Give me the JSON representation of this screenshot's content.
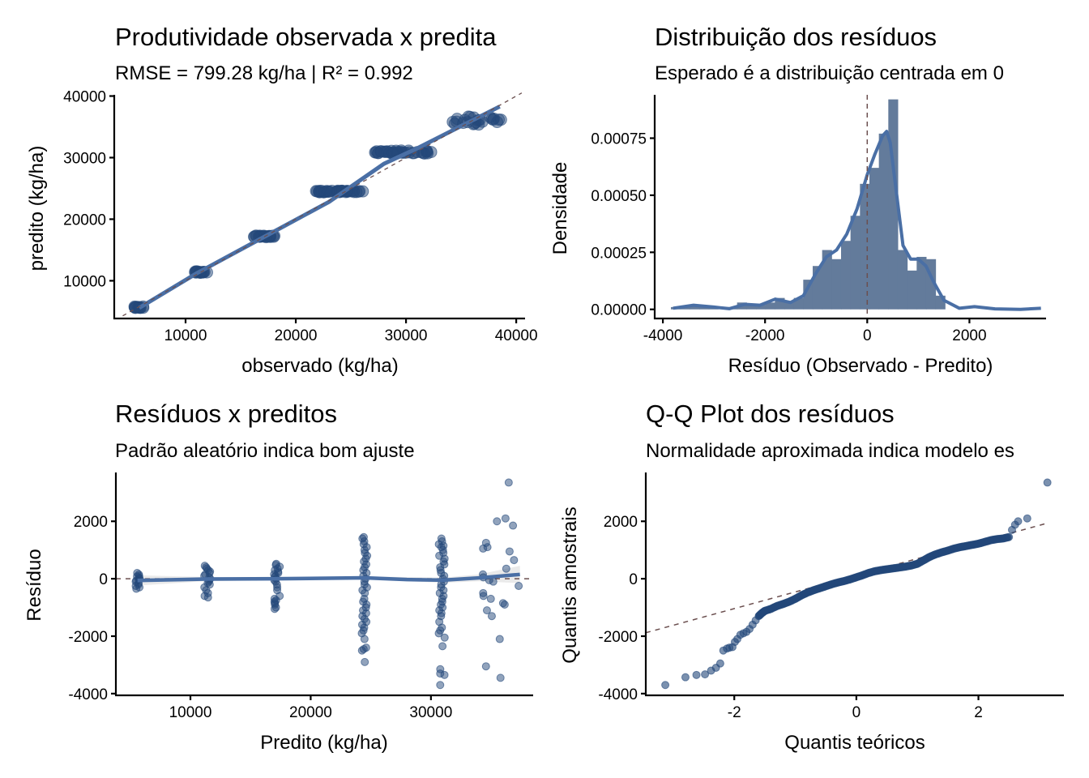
{
  "colors": {
    "point": "#23487a",
    "line": "#4a6fa5",
    "bar": "#637b9b",
    "ref": "#6b4f4f",
    "band": "#d9d9d9"
  },
  "chart_data": [
    {
      "type": "scatter",
      "title": "Produtividade observada x predita",
      "subtitle": "RMSE = 799.28 kg/ha | R² = 0.992",
      "xlabel": "observado (kg/ha)",
      "ylabel": "predito (kg/ha)",
      "xlim": [
        3530,
        40800
      ],
      "ylim": [
        3870,
        40200
      ],
      "xticks": [
        10000,
        20000,
        30000,
        40000
      ],
      "xtick_labels": [
        "10000",
        "20000",
        "30000",
        "40000"
      ],
      "yticks": [
        10000,
        20000,
        30000,
        40000
      ],
      "ytick_labels": [
        "10000",
        "20000",
        "30000",
        "40000"
      ],
      "reference_line": "y = x (dashed)",
      "fit_line": [
        [
          5800,
          5600
        ],
        [
          11000,
          11200
        ],
        [
          17000,
          17000
        ],
        [
          23000,
          22800
        ],
        [
          28000,
          29000
        ],
        [
          31000,
          31500
        ],
        [
          38500,
          38300
        ]
      ],
      "clusters": [
        {
          "x_range": [
            5300,
            6200
          ],
          "y": 5700,
          "n": 14
        },
        {
          "x_range": [
            10800,
            12000
          ],
          "y": 11400,
          "n": 18
        },
        {
          "x_range": [
            16200,
            18200
          ],
          "y": 17200,
          "n": 22
        },
        {
          "x_range": [
            21800,
            26200
          ],
          "y": 24500,
          "n": 40
        },
        {
          "x_range": [
            27000,
            32500
          ],
          "y": 30900,
          "n": 40
        },
        {
          "x_range": [
            34000,
            38800
          ],
          "y": 36000,
          "n": 24
        }
      ]
    },
    {
      "type": "bar",
      "title": "Distribuição dos resíduos",
      "subtitle": "Esperado é a distribuição centrada em 0",
      "xlabel": "Resíduo (Observado - Predito)",
      "ylabel": "Densidade",
      "xlim": [
        -4160,
        3500
      ],
      "ylim": [
        -4e-05,
        0.00094
      ],
      "xticks": [
        -4000,
        -2000,
        0,
        2000
      ],
      "xtick_labels": [
        "-4000",
        "-2000",
        "0",
        "2000"
      ],
      "yticks": [
        0,
        0.00025,
        0.0005,
        0.00075
      ],
      "ytick_labels": [
        "0.00000",
        "0.00025",
        "0.00050",
        "0.00075"
      ],
      "bin_width": 185,
      "bins": [
        {
          "x": -3750,
          "density": 1e-05
        },
        {
          "x": -3565,
          "density": 1e-05
        },
        {
          "x": -3380,
          "density": 2e-05
        },
        {
          "x": -3195,
          "density": 1e-05
        },
        {
          "x": -3010,
          "density": 1e-05
        },
        {
          "x": -2825,
          "density": 0.0
        },
        {
          "x": -2640,
          "density": 1e-05
        },
        {
          "x": -2455,
          "density": 3e-05
        },
        {
          "x": -2270,
          "density": 2e-05
        },
        {
          "x": -2085,
          "density": 2e-05
        },
        {
          "x": -1900,
          "density": 3e-05
        },
        {
          "x": -1715,
          "density": 5e-05
        },
        {
          "x": -1530,
          "density": 3e-05
        },
        {
          "x": -1345,
          "density": 5e-05
        },
        {
          "x": -1160,
          "density": 0.00013
        },
        {
          "x": -975,
          "density": 0.00019
        },
        {
          "x": -790,
          "density": 0.00026
        },
        {
          "x": -605,
          "density": 0.00022
        },
        {
          "x": -420,
          "density": 0.0003
        },
        {
          "x": -235,
          "density": 0.00041
        },
        {
          "x": -50,
          "density": 0.00055
        },
        {
          "x": 135,
          "density": 0.00062
        },
        {
          "x": 320,
          "density": 0.00077
        },
        {
          "x": 505,
          "density": 0.00092
        },
        {
          "x": 690,
          "density": 0.00026
        },
        {
          "x": 875,
          "density": 0.00017
        },
        {
          "x": 1060,
          "density": 0.00023
        },
        {
          "x": 1245,
          "density": 0.00022
        },
        {
          "x": 1430,
          "density": 6e-05
        }
      ],
      "density_curve": [
        [
          -3800,
          5e-06
        ],
        [
          -3400,
          1.8e-05
        ],
        [
          -3000,
          1e-05
        ],
        [
          -2700,
          3e-06
        ],
        [
          -2400,
          2.2e-05
        ],
        [
          -2100,
          1.8e-05
        ],
        [
          -1800,
          4.5e-05
        ],
        [
          -1500,
          3e-05
        ],
        [
          -1250,
          6e-05
        ],
        [
          -1000,
          0.00016
        ],
        [
          -800,
          0.00023
        ],
        [
          -600,
          0.00026
        ],
        [
          -400,
          0.00033
        ],
        [
          -200,
          0.00044
        ],
        [
          0,
          0.00059
        ],
        [
          150,
          0.00068
        ],
        [
          300,
          0.00076
        ],
        [
          380,
          0.00078
        ],
        [
          450,
          0.00073
        ],
        [
          550,
          0.00055
        ],
        [
          700,
          0.00028
        ],
        [
          850,
          0.00022
        ],
        [
          1000,
          0.00022
        ],
        [
          1150,
          0.00019
        ],
        [
          1300,
          0.00012
        ],
        [
          1500,
          4e-05
        ],
        [
          1800,
          5e-06
        ],
        [
          2100,
          1.2e-05
        ],
        [
          2500,
          2e-06
        ],
        [
          3000,
          0.0
        ],
        [
          3400,
          5e-06
        ]
      ],
      "reference_line": "x = 0 (dashed)"
    },
    {
      "type": "scatter",
      "title": "Resíduos x preditos",
      "subtitle": "Padrão aleatório indica bom ajuste",
      "xlabel": "Predito (kg/ha)",
      "ylabel": "Resíduo",
      "xlim": [
        3800,
        38500
      ],
      "ylim": [
        -4060,
        3700
      ],
      "xticks": [
        10000,
        20000,
        30000
      ],
      "xtick_labels": [
        "10000",
        "20000",
        "30000"
      ],
      "yticks": [
        -4000,
        -2000,
        0,
        2000
      ],
      "ytick_labels": [
        "-4000",
        "-2000",
        "0",
        "2000"
      ],
      "reference_line": "y = 0 (dashed)",
      "smooth_line": [
        [
          5600,
          -60
        ],
        [
          11400,
          -10
        ],
        [
          17200,
          0
        ],
        [
          24500,
          30
        ],
        [
          28000,
          -30
        ],
        [
          31000,
          -50
        ],
        [
          34000,
          30
        ],
        [
          37400,
          150
        ]
      ],
      "groups": [
        {
          "x": 5700,
          "residuals": [
            200,
            150,
            100,
            80,
            40,
            0,
            -30,
            -60,
            -100,
            -150,
            -200,
            -250,
            -300,
            -350
          ]
        },
        {
          "x": 11400,
          "residuals": [
            450,
            400,
            350,
            300,
            250,
            200,
            150,
            100,
            50,
            0,
            -50,
            -100,
            -150,
            -200,
            -300,
            -400,
            -500,
            -600,
            -650
          ]
        },
        {
          "x": 17200,
          "residuals": [
            520,
            480,
            420,
            360,
            300,
            250,
            200,
            150,
            100,
            50,
            0,
            -50,
            -100,
            -200,
            -300,
            -400,
            -600,
            -700,
            -750,
            -800,
            -850,
            -900,
            -1000,
            -1050
          ]
        },
        {
          "x": 24500,
          "residuals": [
            1450,
            1400,
            1300,
            1200,
            1100,
            1000,
            900,
            800,
            700,
            600,
            500,
            400,
            300,
            200,
            100,
            0,
            -100,
            -200,
            -300,
            -400,
            -500,
            -700,
            -800,
            -900,
            -1000,
            -1100,
            -1200,
            -1300,
            -1400,
            -1500,
            -1600,
            -1700,
            -1800,
            -1900,
            -2100,
            -2400,
            -2450,
            -2500,
            -2900
          ]
        },
        {
          "x": 30900,
          "residuals": [
            1400,
            1300,
            1200,
            1150,
            1100,
            1000,
            900,
            800,
            700,
            600,
            500,
            400,
            300,
            200,
            100,
            0,
            -100,
            -200,
            -300,
            -400,
            -500,
            -600,
            -700,
            -800,
            -900,
            -1000,
            -1100,
            -1200,
            -1300,
            -1500,
            -1700,
            -1800,
            -1900,
            -2050,
            -2350,
            -3150,
            -3300,
            -3350,
            -3700
          ]
        },
        {
          "x": 35800,
          "residuals": [
            3350,
            2100,
            2000,
            1850,
            1250,
            1100,
            1050,
            950,
            650,
            350,
            150,
            50,
            -50,
            -100,
            -250,
            -500,
            -600,
            -700,
            -850,
            -900,
            -1100,
            -1300,
            -2100,
            -3050,
            -3450
          ],
          "spread": 1500
        }
      ]
    },
    {
      "type": "scatter",
      "title": "Q-Q Plot dos resíduos",
      "subtitle": "Normalidade aproximada indica modelo es",
      "xlabel": "Quantis teóricos",
      "ylabel": "Quantis amostrais",
      "xlim": [
        -3.45,
        3.4
      ],
      "ylim": [
        -4060,
        3700
      ],
      "xticks": [
        -2,
        0,
        2
      ],
      "xtick_labels": [
        "-2",
        "0",
        "2"
      ],
      "yticks": [
        -4000,
        -2000,
        0,
        2000
      ],
      "ytick_labels": [
        "-4000",
        "-2000",
        "0",
        "2000"
      ],
      "reference_line": {
        "intercept": 120,
        "slope": 580
      },
      "points": [
        [
          -3.13,
          -3700
        ],
        [
          -2.8,
          -3430
        ],
        [
          -2.62,
          -3350
        ],
        [
          -2.48,
          -3330
        ],
        [
          -2.38,
          -3200
        ],
        [
          -2.3,
          -3100
        ],
        [
          -2.23,
          -2950
        ],
        [
          -2.18,
          -2500
        ],
        [
          -2.12,
          -2430
        ],
        [
          -2.08,
          -2400
        ],
        [
          -2.03,
          -2380
        ],
        [
          -1.99,
          -2200
        ],
        [
          -1.95,
          -2100
        ],
        [
          -1.9,
          -1950
        ],
        [
          -1.85,
          -1900
        ],
        [
          -1.8,
          -1850
        ],
        [
          -1.75,
          -1750
        ],
        [
          -1.7,
          -1600
        ],
        [
          -1.65,
          -1450
        ],
        [
          -1.6,
          -1300
        ],
        [
          -1.55,
          -1200
        ],
        [
          -1.5,
          -1120
        ],
        [
          -1.4,
          -1050
        ],
        [
          -1.3,
          -950
        ],
        [
          -1.2,
          -880
        ],
        [
          -1.1,
          -800
        ],
        [
          -1.0,
          -700
        ],
        [
          -0.9,
          -580
        ],
        [
          -0.8,
          -480
        ],
        [
          -0.7,
          -400
        ],
        [
          -0.6,
          -330
        ],
        [
          -0.5,
          -260
        ],
        [
          -0.4,
          -190
        ],
        [
          -0.3,
          -130
        ],
        [
          -0.2,
          -80
        ],
        [
          -0.1,
          -20
        ],
        [
          0.0,
          50
        ],
        [
          0.1,
          120
        ],
        [
          0.2,
          200
        ],
        [
          0.3,
          260
        ],
        [
          0.4,
          300
        ],
        [
          0.5,
          330
        ],
        [
          0.6,
          360
        ],
        [
          0.7,
          390
        ],
        [
          0.8,
          420
        ],
        [
          0.9,
          460
        ],
        [
          1.0,
          520
        ],
        [
          1.1,
          640
        ],
        [
          1.2,
          760
        ],
        [
          1.3,
          850
        ],
        [
          1.4,
          920
        ],
        [
          1.5,
          980
        ],
        [
          1.6,
          1050
        ],
        [
          1.7,
          1100
        ],
        [
          1.8,
          1140
        ],
        [
          1.9,
          1180
        ],
        [
          2.0,
          1220
        ],
        [
          2.1,
          1280
        ],
        [
          2.2,
          1340
        ],
        [
          2.3,
          1380
        ],
        [
          2.4,
          1400
        ],
        [
          2.5,
          1450
        ],
        [
          2.55,
          1700
        ],
        [
          2.6,
          1880
        ],
        [
          2.65,
          2000
        ],
        [
          2.8,
          2100
        ],
        [
          3.13,
          3350
        ]
      ]
    }
  ]
}
